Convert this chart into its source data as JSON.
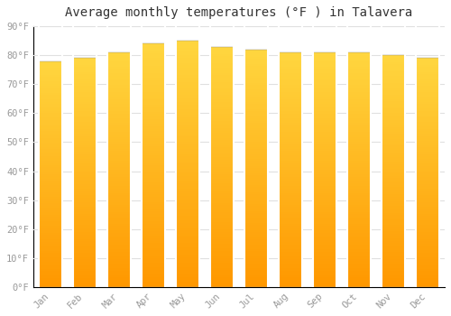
{
  "title": "Average monthly temperatures (°F ) in Talavera",
  "months": [
    "Jan",
    "Feb",
    "Mar",
    "Apr",
    "May",
    "Jun",
    "Jul",
    "Aug",
    "Sep",
    "Oct",
    "Nov",
    "Dec"
  ],
  "values": [
    78,
    79,
    81,
    84,
    85,
    83,
    82,
    81,
    81,
    81,
    80,
    79
  ],
  "bar_color_top": "#FFD740",
  "bar_color_bottom": "#FF9800",
  "background_color": "#ffffff",
  "plot_bg_color": "#f5f5f5",
  "grid_color": "#e0e0e0",
  "ylim": [
    0,
    90
  ],
  "yticks": [
    0,
    10,
    20,
    30,
    40,
    50,
    60,
    70,
    80,
    90
  ],
  "ytick_labels": [
    "0°F",
    "10°F",
    "20°F",
    "30°F",
    "40°F",
    "50°F",
    "60°F",
    "70°F",
    "80°F",
    "90°F"
  ],
  "title_fontsize": 10,
  "tick_fontsize": 7.5,
  "tick_color": "#999999",
  "spine_color": "#000000",
  "bar_width": 0.7,
  "n_gradient_steps": 100
}
